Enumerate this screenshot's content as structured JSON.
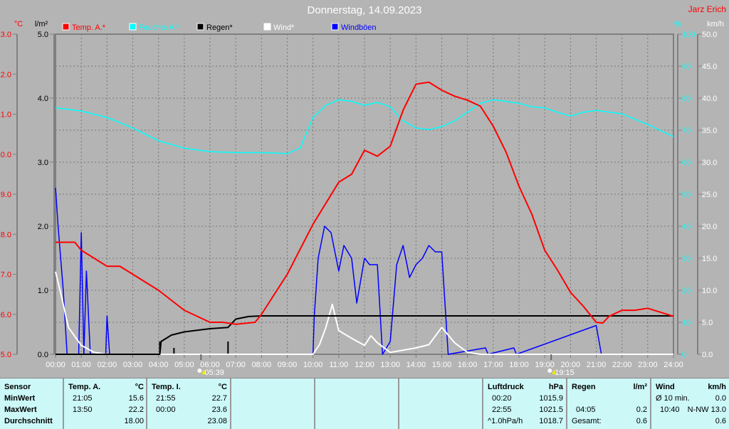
{
  "title": "Donnerstag, 14.09.2023",
  "author": "Jarz Erich",
  "axes": {
    "temp_unit": "°C",
    "rain_unit": "l/m²",
    "hum_unit": "%",
    "wind_unit": "km/h"
  },
  "legend": [
    {
      "label": "Temp. A.*",
      "color": "#ff0000"
    },
    {
      "label": "Feuchte A.*",
      "color": "#00ffff"
    },
    {
      "label": "Regen*",
      "color": "#000000"
    },
    {
      "label": "Wind*",
      "color": "#ffffff"
    },
    {
      "label": "Windböen",
      "color": "#0000ff"
    }
  ],
  "sun": {
    "rise": "05:39",
    "set": "19:15"
  },
  "chart_data": {
    "type": "line",
    "title": "Donnerstag, 14.09.2023",
    "x_ticks": [
      "00:00",
      "01:00",
      "02:00",
      "03:00",
      "04:00",
      "05:00",
      "06:00",
      "07:00",
      "08:00",
      "09:00",
      "10:00",
      "11:00",
      "12:00",
      "13:00",
      "14:00",
      "15:00",
      "16:00",
      "17:00",
      "18:00",
      "19:00",
      "20:00",
      "21:00",
      "22:00",
      "23:00",
      "24:00"
    ],
    "xlim": [
      0,
      24
    ],
    "temp_axis": {
      "ylim": [
        15,
        23
      ],
      "ticks": [
        "15.0",
        "16.0",
        "17.0",
        "18.0",
        "19.0",
        "20.0",
        "21.0",
        "22.0",
        "23.0"
      ]
    },
    "rain_axis": {
      "ylim": [
        0,
        5
      ],
      "ticks": [
        "0.0",
        "1.0",
        "2.0",
        "3.0",
        "4.0",
        "5.0"
      ]
    },
    "hum_axis": {
      "ylim": [
        0,
        100
      ],
      "ticks": [
        "0",
        "10",
        "20",
        "30",
        "40",
        "50",
        "60",
        "70",
        "80",
        "90",
        "100"
      ]
    },
    "wind_axis": {
      "ylim": [
        0,
        50
      ],
      "ticks": [
        "0.0",
        "5.0",
        "10.0",
        "15.0",
        "20.0",
        "25.0",
        "30.0",
        "35.0",
        "40.0",
        "45.0",
        "50.0"
      ]
    },
    "series": [
      {
        "name": "Temp. A.*",
        "axis": "temp",
        "color": "#ff0000",
        "points": [
          [
            0,
            17.8
          ],
          [
            0.75,
            17.8
          ],
          [
            1,
            17.6
          ],
          [
            2,
            17.2
          ],
          [
            2.5,
            17.2
          ],
          [
            3,
            17.0
          ],
          [
            4,
            16.6
          ],
          [
            5,
            16.1
          ],
          [
            6,
            15.8
          ],
          [
            6.5,
            15.8
          ],
          [
            7,
            15.75
          ],
          [
            7.75,
            15.8
          ],
          [
            8,
            16.0
          ],
          [
            9,
            17.0
          ],
          [
            10,
            18.25
          ],
          [
            11,
            19.3
          ],
          [
            11.5,
            19.5
          ],
          [
            12,
            20.1
          ],
          [
            12.5,
            19.95
          ],
          [
            13,
            20.2
          ],
          [
            13.5,
            21.1
          ],
          [
            14,
            21.75
          ],
          [
            14.5,
            21.8
          ],
          [
            15,
            21.6
          ],
          [
            15.5,
            21.45
          ],
          [
            16,
            21.35
          ],
          [
            16.5,
            21.2
          ],
          [
            17,
            20.7
          ],
          [
            17.5,
            20.05
          ],
          [
            18,
            19.2
          ],
          [
            18.5,
            18.5
          ],
          [
            19,
            17.6
          ],
          [
            19.5,
            17.1
          ],
          [
            20,
            16.55
          ],
          [
            20.5,
            16.2
          ],
          [
            21,
            15.8
          ],
          [
            21.25,
            15.78
          ],
          [
            21.5,
            15.95
          ],
          [
            22,
            16.1
          ],
          [
            22.5,
            16.1
          ],
          [
            23,
            16.15
          ],
          [
            23.5,
            16.05
          ],
          [
            24,
            15.95
          ]
        ]
      },
      {
        "name": "Feuchte A.*",
        "axis": "hum",
        "color": "#00ffff",
        "points": [
          [
            0,
            77
          ],
          [
            1,
            76
          ],
          [
            2,
            74
          ],
          [
            3,
            70.7
          ],
          [
            4,
            66.7
          ],
          [
            5,
            64.4
          ],
          [
            6,
            63.3
          ],
          [
            7,
            63
          ],
          [
            8,
            63
          ],
          [
            9,
            62.7
          ],
          [
            9.5,
            64.4
          ],
          [
            10,
            74
          ],
          [
            10.5,
            77.8
          ],
          [
            11,
            79.5
          ],
          [
            11.5,
            79
          ],
          [
            12,
            77.8
          ],
          [
            12.5,
            78.7
          ],
          [
            13,
            77.3
          ],
          [
            13.5,
            72.9
          ],
          [
            14,
            70.7
          ],
          [
            14.5,
            70.2
          ],
          [
            15,
            71.1
          ],
          [
            15.5,
            72.9
          ],
          [
            16,
            75.6
          ],
          [
            16.5,
            78.4
          ],
          [
            17,
            79.5
          ],
          [
            17.5,
            79
          ],
          [
            18,
            78.4
          ],
          [
            18.5,
            77.3
          ],
          [
            19,
            77
          ],
          [
            19.5,
            75.6
          ],
          [
            20,
            74.4
          ],
          [
            20.5,
            75.6
          ],
          [
            21,
            76.2
          ],
          [
            22,
            75.1
          ],
          [
            23,
            71.8
          ],
          [
            24,
            68
          ]
        ]
      },
      {
        "name": "Regen*",
        "axis": "rain",
        "color": "#000000",
        "points": [
          [
            0,
            0
          ],
          [
            4.05,
            0
          ],
          [
            4.1,
            0.2
          ],
          [
            4.5,
            0.3
          ],
          [
            5,
            0.35
          ],
          [
            6,
            0.4
          ],
          [
            6.7,
            0.42
          ],
          [
            7,
            0.55
          ],
          [
            7.5,
            0.59
          ],
          [
            8,
            0.6
          ],
          [
            24,
            0.6
          ]
        ]
      },
      {
        "name": "Wind*",
        "axis": "wind",
        "color": "#ffffff",
        "points": [
          [
            0,
            12.9
          ],
          [
            0.25,
            8.7
          ],
          [
            0.5,
            4.2
          ],
          [
            1,
            1.4
          ],
          [
            1.5,
            0.3
          ],
          [
            2,
            0
          ],
          [
            10,
            0
          ],
          [
            10.25,
            1.5
          ],
          [
            10.5,
            4.2
          ],
          [
            10.75,
            7.8
          ],
          [
            11,
            3.7
          ],
          [
            11.5,
            2.5
          ],
          [
            12,
            1.4
          ],
          [
            12.25,
            2.9
          ],
          [
            12.5,
            1.8
          ],
          [
            13,
            0.3
          ],
          [
            14,
            1
          ],
          [
            14.5,
            1.5
          ],
          [
            15,
            4.2
          ],
          [
            15.5,
            1.8
          ],
          [
            16,
            0.3
          ],
          [
            16.5,
            0
          ],
          [
            24,
            0
          ]
        ]
      },
      {
        "name": "Windböen",
        "axis": "wind",
        "color": "#0000ff",
        "points": [
          [
            0,
            26
          ],
          [
            0.1,
            20
          ],
          [
            0.2,
            15
          ],
          [
            0.3,
            10
          ],
          [
            0.45,
            0
          ],
          [
            0.9,
            0
          ],
          [
            1,
            19
          ],
          [
            1.1,
            0
          ],
          [
            1.2,
            13
          ],
          [
            1.35,
            0
          ],
          [
            1.95,
            0
          ],
          [
            2,
            6
          ],
          [
            2.1,
            0
          ],
          [
            10,
            0
          ],
          [
            10.05,
            6
          ],
          [
            10.2,
            15
          ],
          [
            10.45,
            20
          ],
          [
            10.7,
            19
          ],
          [
            11,
            13
          ],
          [
            11.2,
            17
          ],
          [
            11.5,
            15
          ],
          [
            11.7,
            8
          ],
          [
            12,
            15
          ],
          [
            12.2,
            14
          ],
          [
            12.5,
            14
          ],
          [
            12.7,
            0
          ],
          [
            13,
            2
          ],
          [
            13.25,
            14
          ],
          [
            13.5,
            17
          ],
          [
            13.75,
            12
          ],
          [
            14,
            14
          ],
          [
            14.25,
            15
          ],
          [
            14.5,
            17
          ],
          [
            14.75,
            16
          ],
          [
            15,
            16
          ],
          [
            15.25,
            0
          ],
          [
            16.7,
            1
          ],
          [
            16.8,
            0
          ],
          [
            17.8,
            1
          ],
          [
            17.9,
            0
          ],
          [
            21,
            4.5
          ],
          [
            21.2,
            0
          ],
          [
            24,
            0
          ]
        ]
      }
    ]
  },
  "table": {
    "temp_a": {
      "header": "Temp. A.",
      "unit": "°C",
      "min_time": "21:05",
      "min": "15.6",
      "max_time": "13:50",
      "max": "22.2",
      "avg": "18.00"
    },
    "temp_i": {
      "header": "Temp. I.",
      "unit": "°C",
      "min_time": "21:55",
      "min": "22.7",
      "max_time": "00:00",
      "max": "23.6",
      "avg": "23.08"
    },
    "labels": {
      "sensor": "Sensor",
      "min": "MinWert",
      "max": "MaxWert",
      "avg": "Durchschnitt"
    },
    "pressure": {
      "header": "Luftdruck",
      "unit": "hPa",
      "min_time": "00:20",
      "min": "1015.9",
      "max_time": "22:55",
      "max": "1021.5",
      "trend": "^1.0hPa/h",
      "avg": "1018.7"
    },
    "rain": {
      "header": "Regen",
      "unit": "l/m²",
      "max_time": "04:05",
      "max": "0.2",
      "total_label": "Gesamt:",
      "total": "0.6"
    },
    "wind": {
      "header": "Wind",
      "unit": "km/h",
      "avg_label": "Ø 10 min.",
      "avg": "0.0",
      "max_time": "10:40",
      "max": "N-NW 13.0",
      "day_avg": "0.6"
    }
  }
}
